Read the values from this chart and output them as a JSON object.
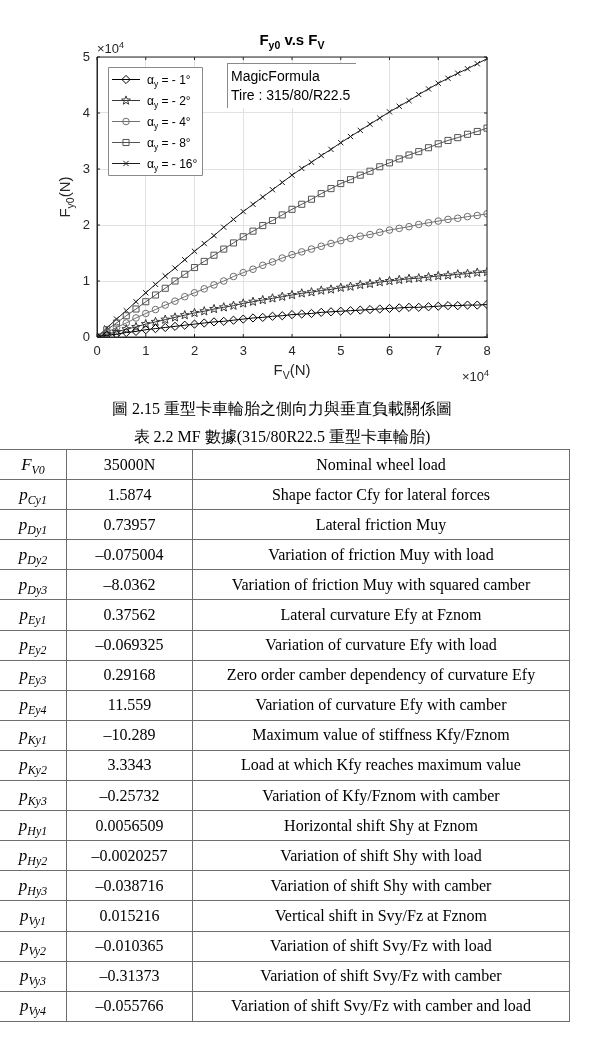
{
  "chart_data": [
    {
      "type": "line",
      "title": "F$_{y0}$ v.s F$_{V}$",
      "xlabel": "F$_{V}$(N)",
      "ylabel": "F$_{y0}$(N)",
      "x": [
        0,
        0.2,
        0.4,
        0.6,
        0.8,
        1,
        1.2,
        1.4,
        1.6,
        1.8,
        2,
        2.2,
        2.4,
        2.6,
        2.8,
        3,
        3.2,
        3.4,
        3.6,
        3.8,
        4,
        4.2,
        4.4,
        4.6,
        4.8,
        5,
        5.2,
        5.4,
        5.6,
        5.8,
        6,
        6.2,
        6.4,
        6.6,
        6.8,
        7,
        7.2,
        7.4,
        7.6,
        7.8,
        8
      ],
      "series": [
        {
          "name": "α$_{y}$ = - 1°",
          "color": "#000000",
          "marker": "diamond",
          "values": [
            0,
            0.03,
            0.05,
            0.08,
            0.1,
            0.13,
            0.15,
            0.17,
            0.19,
            0.21,
            0.23,
            0.25,
            0.27,
            0.28,
            0.3,
            0.32,
            0.34,
            0.35,
            0.37,
            0.38,
            0.4,
            0.41,
            0.42,
            0.44,
            0.45,
            0.46,
            0.47,
            0.48,
            0.49,
            0.5,
            0.51,
            0.52,
            0.53,
            0.53,
            0.54,
            0.55,
            0.56,
            0.56,
            0.57,
            0.57,
            0.58
          ]
        },
        {
          "name": "α$_{y}$ = - 2°",
          "color": "#383838",
          "marker": "star",
          "values": [
            0,
            0.05,
            0.09,
            0.14,
            0.18,
            0.23,
            0.27,
            0.31,
            0.35,
            0.39,
            0.43,
            0.46,
            0.5,
            0.53,
            0.56,
            0.6,
            0.63,
            0.66,
            0.69,
            0.72,
            0.75,
            0.78,
            0.8,
            0.83,
            0.85,
            0.88,
            0.9,
            0.93,
            0.95,
            0.98,
            1,
            1.02,
            1.04,
            1.05,
            1.07,
            1.09,
            1.1,
            1.12,
            1.13,
            1.15,
            1.16
          ]
        },
        {
          "name": "α$_{y}$ = - 4°",
          "color": "#707070",
          "marker": "circle",
          "values": [
            0,
            0.08,
            0.17,
            0.25,
            0.34,
            0.42,
            0.49,
            0.57,
            0.64,
            0.72,
            0.79,
            0.86,
            0.93,
            1,
            1.08,
            1.15,
            1.21,
            1.28,
            1.34,
            1.41,
            1.47,
            1.52,
            1.57,
            1.62,
            1.67,
            1.72,
            1.76,
            1.8,
            1.83,
            1.87,
            1.91,
            1.94,
            1.97,
            2.01,
            2.04,
            2.07,
            2.1,
            2.12,
            2.15,
            2.17,
            2.2
          ]
        },
        {
          "name": "α$_{y}$ = - 8°",
          "color": "#545454",
          "marker": "square",
          "values": [
            0,
            0.13,
            0.25,
            0.38,
            0.5,
            0.63,
            0.75,
            0.87,
            1,
            1.12,
            1.24,
            1.35,
            1.46,
            1.57,
            1.68,
            1.79,
            1.89,
            1.99,
            2.08,
            2.18,
            2.28,
            2.37,
            2.46,
            2.56,
            2.65,
            2.74,
            2.81,
            2.89,
            2.96,
            3.04,
            3.11,
            3.18,
            3.25,
            3.31,
            3.38,
            3.45,
            3.51,
            3.56,
            3.62,
            3.67,
            3.73
          ]
        },
        {
          "name": "α$_{y}$ = - 16°",
          "color": "#1c1c1c",
          "marker": "cross",
          "values": [
            0,
            0.16,
            0.32,
            0.47,
            0.63,
            0.79,
            0.94,
            1.09,
            1.23,
            1.38,
            1.53,
            1.67,
            1.81,
            1.96,
            2.1,
            2.24,
            2.37,
            2.5,
            2.63,
            2.76,
            2.89,
            3.01,
            3.12,
            3.24,
            3.35,
            3.47,
            3.58,
            3.69,
            3.8,
            3.91,
            4.02,
            4.12,
            4.22,
            4.33,
            4.43,
            4.53,
            4.62,
            4.71,
            4.79,
            4.88,
            4.97
          ]
        }
      ],
      "xlim": [
        0,
        8
      ],
      "xticks": [
        0,
        1,
        2,
        3,
        4,
        5,
        6,
        7,
        8
      ],
      "ylim": [
        0,
        5
      ],
      "yticks": [
        0,
        1,
        2,
        3,
        4,
        5
      ],
      "grid": true,
      "legend": "top left",
      "line_style": "solid",
      "annotations": [
        "MagicFormula",
        "Tire : 315/80/R22.5",
        "×10$^{4}$",
        "×10$^{4}$",
        "圖 2.15 重型卡車輪胎之側向力與垂直負載關係圖"
      ]
    },
    {
      "type": "other",
      "title": "表 2.2 MF 數據(315/80R22.5 重型卡車輪胎)",
      "annotations": [
        "F$_{V0}$",
        "35000N",
        "Nominal wheel load",
        "p$_{Cy1}$",
        "1.5874",
        "Shape factor Cfy for lateral forces",
        "p$_{Dy1}$",
        "0.73957",
        "Lateral friction Muy",
        "p$_{Dy2}$",
        "–0.075004",
        "Variation of friction Muy with load",
        "p$_{Dy3}$",
        "–8.0362",
        "Variation of friction Muy with squared camber",
        "p$_{Ey1}$",
        "0.37562",
        "Lateral curvature Efy at Fznom",
        "p$_{Ey2}$",
        "–0.069325",
        "Variation of curvature Efy with load",
        "p$_{Ey3}$",
        "0.29168",
        "Zero order camber dependency of curvature Efy",
        "p$_{Ey4}$",
        "11.559",
        "Variation of curvature Efy with camber",
        "p$_{Ky1}$",
        "–10.289",
        "Maximum value of stiffness Kfy/Fznom",
        "p$_{Ky2}$",
        "3.3343",
        "Load at which Kfy reaches maximum value",
        "p$_{Ky3}$",
        "–0.25732",
        "Variation of Kfy/Fznom with camber",
        "p$_{Hy1}$",
        "0.0056509",
        "Horizontal shift Shy at Fznom",
        "p$_{Hy2}$",
        "–0.0020257",
        "Variation of shift Shy with load",
        "p$_{Hy3}$",
        "–0.038716",
        "Variation of shift Shy with camber",
        "p$_{Vy1}$",
        "0.015216",
        "Vertical shift in Svy/Fz at Fznom",
        "p$_{Vy2}$",
        "–0.010365",
        "Variation of shift Svy/Fz with load",
        "p$_{Vy3}$",
        "–0.31373",
        "Variation of shift Svy/Fz with camber",
        "p$_{Vy4}$",
        "–0.055766",
        "Variation of shift Svy/Fz with camber and load"
      ]
    }
  ]
}
